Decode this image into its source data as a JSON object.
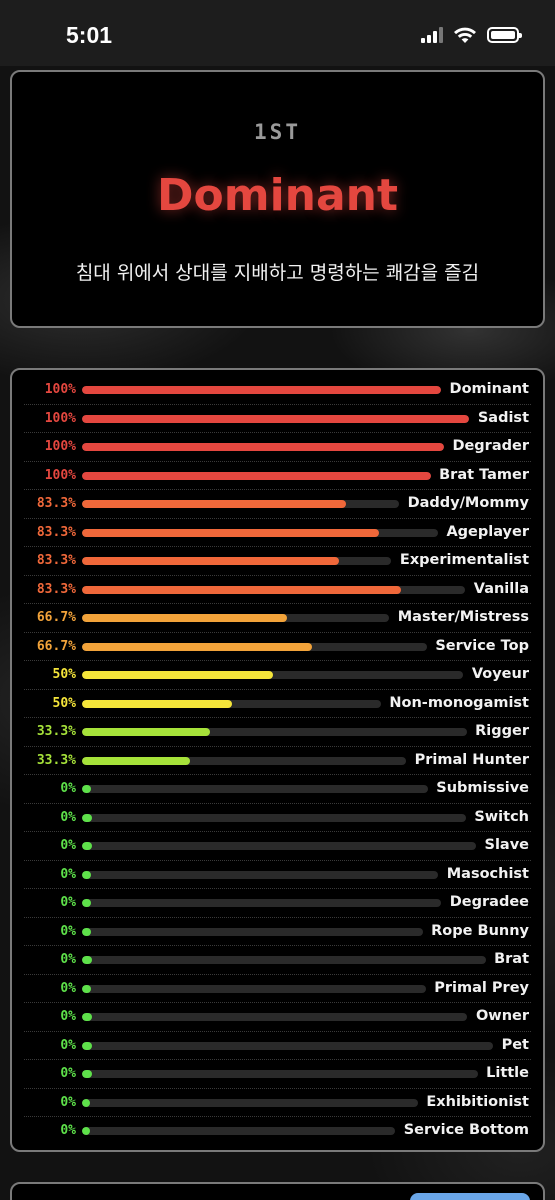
{
  "status_bar": {
    "time": "5:01"
  },
  "hero": {
    "rank": "1ST",
    "title": "Dominant",
    "description": "침대 위에서 상대를 지배하고 명령하는 쾌감을 즐김"
  },
  "results": [
    {
      "label": "Dominant",
      "percent_text": "100%",
      "value": 100,
      "color": "#e4473f"
    },
    {
      "label": "Sadist",
      "percent_text": "100%",
      "value": 100,
      "color": "#e4473f"
    },
    {
      "label": "Degrader",
      "percent_text": "100%",
      "value": 100,
      "color": "#e4473f"
    },
    {
      "label": "Brat Tamer",
      "percent_text": "100%",
      "value": 100,
      "color": "#e4473f"
    },
    {
      "label": "Daddy/Mommy",
      "percent_text": "83.3%",
      "value": 83.3,
      "color": "#f0683a"
    },
    {
      "label": "Ageplayer",
      "percent_text": "83.3%",
      "value": 83.3,
      "color": "#f0683a"
    },
    {
      "label": "Experimentalist",
      "percent_text": "83.3%",
      "value": 83.3,
      "color": "#f0683a"
    },
    {
      "label": "Vanilla",
      "percent_text": "83.3%",
      "value": 83.3,
      "color": "#f0683a"
    },
    {
      "label": "Master/Mistress",
      "percent_text": "66.7%",
      "value": 66.7,
      "color": "#f2a33a"
    },
    {
      "label": "Service Top",
      "percent_text": "66.7%",
      "value": 66.7,
      "color": "#f2a33a"
    },
    {
      "label": "Voyeur",
      "percent_text": "50%",
      "value": 50,
      "color": "#f5e53a"
    },
    {
      "label": "Non-monogamist",
      "percent_text": "50%",
      "value": 50,
      "color": "#f5e53a"
    },
    {
      "label": "Rigger",
      "percent_text": "33.3%",
      "value": 33.3,
      "color": "#a6e23a"
    },
    {
      "label": "Primal Hunter",
      "percent_text": "33.3%",
      "value": 33.3,
      "color": "#a6e23a"
    },
    {
      "label": "Submissive",
      "percent_text": "0%",
      "value": 0,
      "color": "#5ee14a"
    },
    {
      "label": "Switch",
      "percent_text": "0%",
      "value": 0,
      "color": "#5ee14a"
    },
    {
      "label": "Slave",
      "percent_text": "0%",
      "value": 0,
      "color": "#5ee14a"
    },
    {
      "label": "Masochist",
      "percent_text": "0%",
      "value": 0,
      "color": "#5ee14a"
    },
    {
      "label": "Degradee",
      "percent_text": "0%",
      "value": 0,
      "color": "#5ee14a"
    },
    {
      "label": "Rope Bunny",
      "percent_text": "0%",
      "value": 0,
      "color": "#5ee14a"
    },
    {
      "label": "Brat",
      "percent_text": "0%",
      "value": 0,
      "color": "#5ee14a"
    },
    {
      "label": "Primal Prey",
      "percent_text": "0%",
      "value": 0,
      "color": "#5ee14a"
    },
    {
      "label": "Owner",
      "percent_text": "0%",
      "value": 0,
      "color": "#5ee14a"
    },
    {
      "label": "Pet",
      "percent_text": "0%",
      "value": 0,
      "color": "#5ee14a"
    },
    {
      "label": "Little",
      "percent_text": "0%",
      "value": 0,
      "color": "#5ee14a"
    },
    {
      "label": "Exhibitionist",
      "percent_text": "0%",
      "value": 0,
      "color": "#5ee14a"
    },
    {
      "label": "Service Bottom",
      "percent_text": "0%",
      "value": 0,
      "color": "#5ee14a"
    }
  ]
}
